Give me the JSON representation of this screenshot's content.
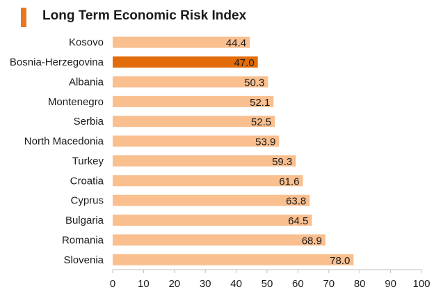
{
  "title": "Long Term Economic Risk Index",
  "colors": {
    "accent": "#e87722",
    "bar": "#f9bf8f",
    "highlight_bar": "#e36c0a",
    "axis": "#bfbfbf",
    "text": "#1a1a1a"
  },
  "chart_data": {
    "type": "bar",
    "orientation": "horizontal",
    "title": "Long Term Economic Risk Index",
    "categories": [
      "Kosovo",
      "Bosnia-Herzegovina",
      "Albania",
      "Montenegro",
      "Serbia",
      "North Macedonia",
      "Turkey",
      "Croatia",
      "Cyprus",
      "Bulgaria",
      "Romania",
      "Slovenia"
    ],
    "values": [
      44.4,
      47.0,
      50.3,
      52.1,
      52.5,
      53.9,
      59.3,
      61.6,
      63.8,
      64.5,
      68.9,
      78.0
    ],
    "value_labels": [
      "44.4",
      "47.0",
      "50.3",
      "52.1",
      "52.5",
      "53.9",
      "59.3",
      "61.6",
      "63.8",
      "64.5",
      "68.9",
      "78.0"
    ],
    "highlighted": "Bosnia-Herzegovina",
    "xlim": [
      0,
      100
    ],
    "xticks": [
      0,
      10,
      20,
      30,
      40,
      50,
      60,
      70,
      80,
      90,
      100
    ],
    "xlabel": "",
    "ylabel": "",
    "grid": false,
    "legend": false
  }
}
